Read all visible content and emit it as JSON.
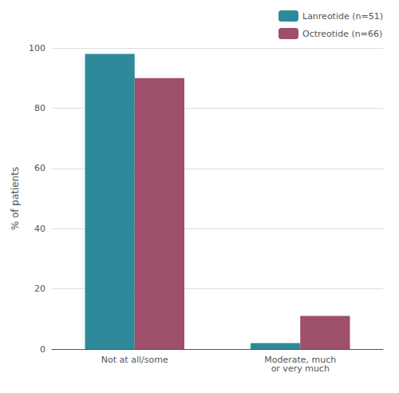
{
  "chart_data": {
    "type": "bar",
    "ylabel": "% of patients",
    "categories": [
      "Not at all/some",
      "Moderate, much\nor very much"
    ],
    "series": [
      {
        "name": "Lanreotide (n=51)",
        "color": "#2e8a9a",
        "values": [
          98,
          2
        ]
      },
      {
        "name": "Octreotide (n=66)",
        "color": "#9e4f69",
        "values": [
          90,
          11
        ]
      }
    ],
    "ylim": [
      0,
      100
    ],
    "yticks": [
      0,
      20,
      40,
      60,
      80,
      100
    ],
    "grid": true,
    "legend": "upper right"
  }
}
